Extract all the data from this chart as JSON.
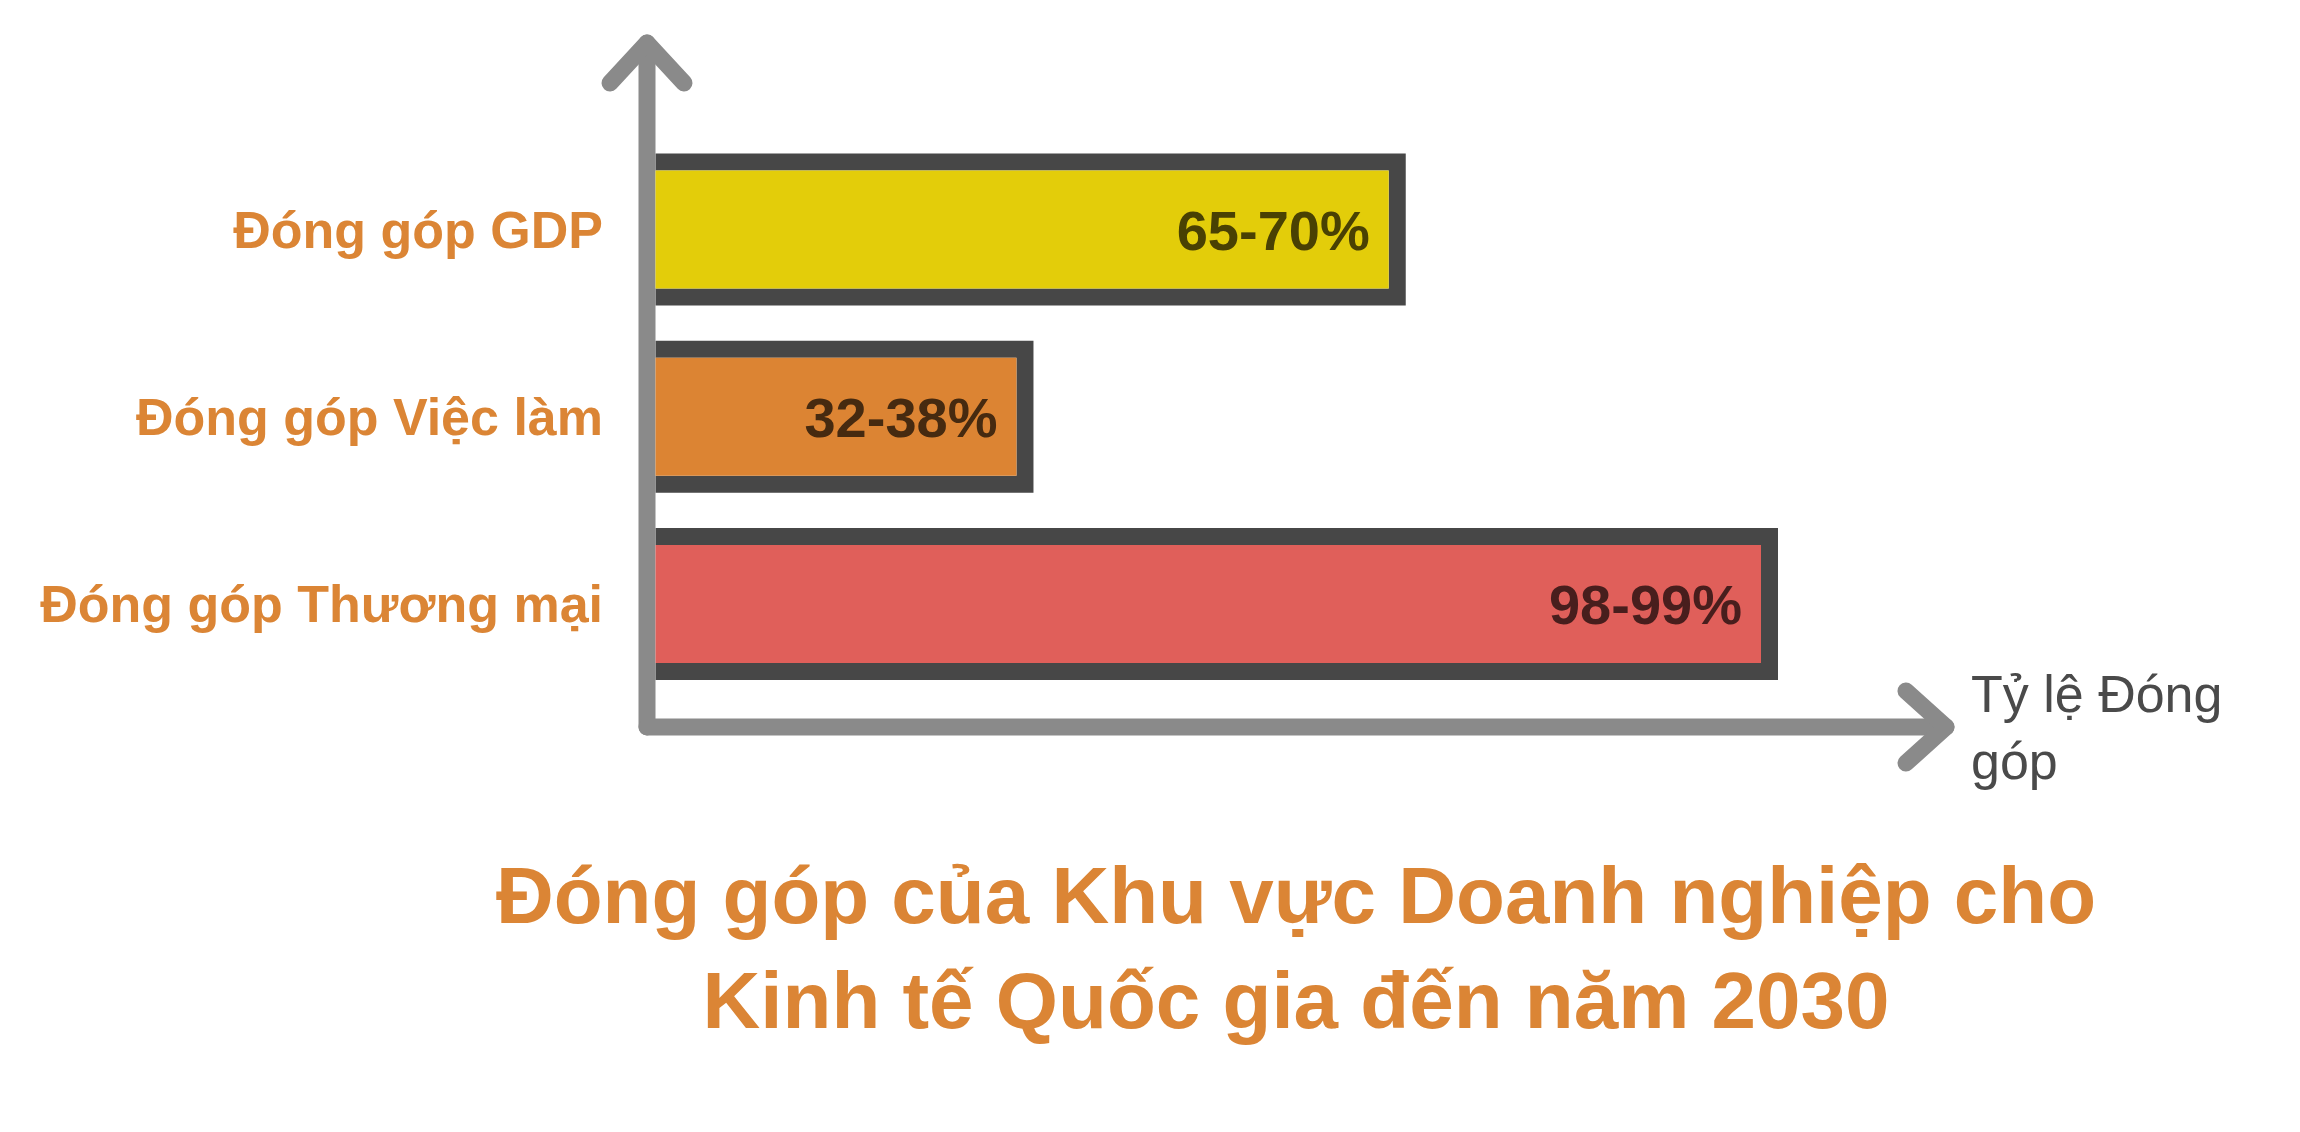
{
  "chart_data": {
    "type": "bar",
    "orientation": "horizontal",
    "title": "Đóng góp của Khu vực Doanh nghiệp cho Kinh tế Quốc gia đến năm 2030",
    "xlabel": "Tỷ lệ Đóng góp",
    "categories": [
      "Đóng góp GDP",
      "Đóng góp Việc làm",
      "Đóng góp Thương mại"
    ],
    "values": [
      65,
      32,
      98
    ],
    "value_labels": [
      "65-70%",
      "32-38%",
      "98-99%"
    ],
    "colors": [
      "#e3cd0a",
      "#dc8433",
      "#e05f5a"
    ]
  }
}
